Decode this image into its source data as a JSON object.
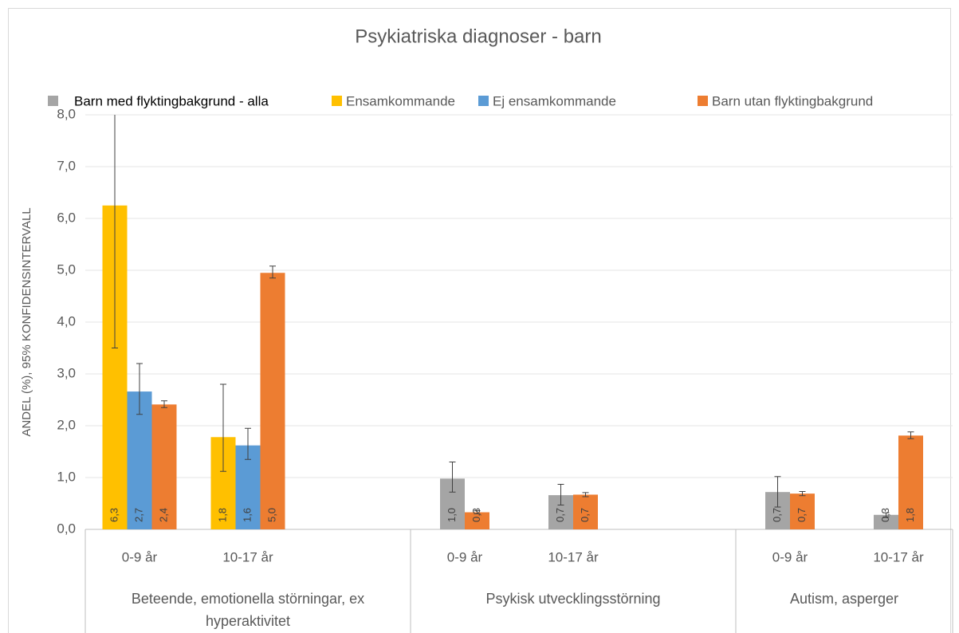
{
  "chart_data": {
    "type": "bar",
    "title": "Psykiatriska diagnoser - barn",
    "y_label": "ANDEL (%), 95% KONFIDENSINTERVALL",
    "groups": [
      {
        "name": "Beteende, emotionella störningar, ex hyperaktivitet",
        "categories": [
          "0-9 år",
          "10-17 år",
          null
        ]
      },
      {
        "name": "Psykisk utvecklingsstörning",
        "categories": [
          "0-9 år",
          "10-17 år",
          null
        ]
      },
      {
        "name": "Autism, asperger",
        "categories": [
          "0-9 år",
          "10-17 år"
        ]
      }
    ],
    "series": [
      {
        "name": "Barn med flyktingbakgrund - alla",
        "color": "#a5a5a5",
        "values": [
          null,
          null,
          null,
          0.98,
          0.66,
          null,
          0.72,
          0.28
        ],
        "value_labels": [
          null,
          null,
          null,
          "1,0",
          "0,7",
          null,
          "0,7",
          "0,3"
        ],
        "ci": [
          null,
          null,
          null,
          [
            0.72,
            1.3
          ],
          [
            0.47,
            0.87
          ],
          null,
          [
            0.43,
            1.02
          ],
          [
            0.24,
            0.32
          ]
        ]
      },
      {
        "name": "Ensamkommande",
        "color": "#ffc000",
        "values": [
          6.25,
          1.78,
          null,
          null,
          null,
          null,
          null,
          null
        ],
        "value_labels": [
          "6,3",
          "1,8",
          null,
          null,
          null,
          null,
          null,
          null
        ],
        "ci": [
          [
            3.5,
            9.0
          ],
          [
            1.12,
            2.8
          ],
          null,
          null,
          null,
          null,
          null,
          null
        ]
      },
      {
        "name": "Ej ensamkommande",
        "color": "#5b9bd5",
        "values": [
          2.66,
          1.62,
          null,
          null,
          null,
          null,
          null,
          null
        ],
        "value_labels": [
          "2,7",
          "1,6",
          null,
          null,
          null,
          null,
          null,
          null
        ],
        "ci": [
          [
            2.22,
            3.2
          ],
          [
            1.35,
            1.95
          ],
          null,
          null,
          null,
          null,
          null,
          null
        ]
      },
      {
        "name": "Barn utan flyktingbakgrund",
        "color": "#ed7d31",
        "values": [
          2.41,
          4.95,
          null,
          0.33,
          0.67,
          null,
          0.69,
          1.81
        ],
        "value_labels": [
          "2,4",
          "5,0",
          null,
          "0,3",
          "0,7",
          null,
          "0,7",
          "1,8"
        ],
        "ci": [
          [
            2.35,
            2.48
          ],
          [
            4.85,
            5.08
          ],
          null,
          [
            0.3,
            0.36
          ],
          [
            0.63,
            0.71
          ],
          null,
          [
            0.65,
            0.73
          ],
          [
            1.75,
            1.88
          ]
        ]
      }
    ],
    "ylim": [
      0,
      8
    ],
    "yticks": [
      {
        "value": 0,
        "label": "0,0"
      },
      {
        "value": 1,
        "label": "1,0"
      },
      {
        "value": 2,
        "label": "2,0"
      },
      {
        "value": 3,
        "label": "3,0"
      },
      {
        "value": 4,
        "label": "4,0"
      },
      {
        "value": 5,
        "label": "5,0"
      },
      {
        "value": 6,
        "label": "6,0"
      },
      {
        "value": 7,
        "label": "7,0"
      },
      {
        "value": 8,
        "label": "8,0"
      }
    ],
    "grid": true,
    "legend": "top"
  }
}
